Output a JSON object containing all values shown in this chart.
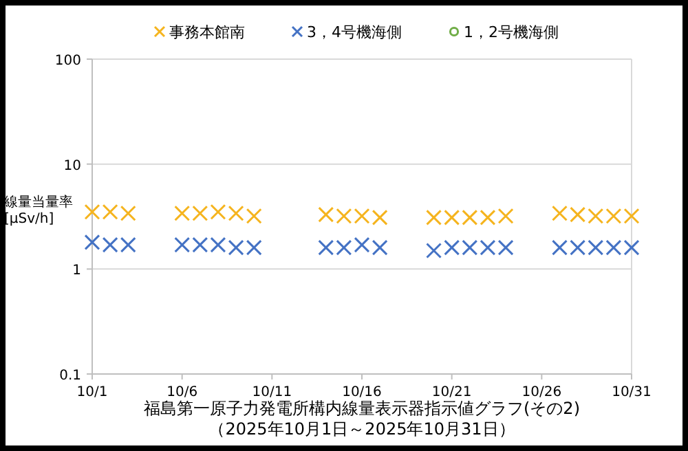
{
  "chart_data": {
    "type": "scatter",
    "title": "福島第一原子力発電所構内線量表示器指示値グラフ(その2)",
    "subtitle": "（2025年10月1日～2025年10月31日）",
    "ylabel": "線量当量率 [μSv/h]",
    "x": [
      "--10-01",
      "--10-02",
      "--10-03",
      "--10-06",
      "--10-07",
      "--10-08",
      "--10-09",
      "--10-10",
      "--10-14",
      "--10-15",
      "--10-16",
      "--10-17",
      "--10-20",
      "--10-21",
      "--10-22",
      "--10-23",
      "--10-24",
      "--10-27",
      "--10-28",
      "--10-29",
      "--10-30",
      "--10-31"
    ],
    "series": [
      {
        "name": "事務本館南",
        "color": "#f5b41e",
        "marker": "cross",
        "values": [
          3.5,
          3.5,
          3.4,
          3.4,
          3.4,
          3.5,
          3.4,
          3.2,
          3.3,
          3.2,
          3.2,
          3.1,
          3.1,
          3.1,
          3.1,
          3.1,
          3.2,
          3.4,
          3.3,
          3.2,
          3.2,
          3.2
        ]
      },
      {
        "name": "3，4号機海側",
        "color": "#4472c4",
        "marker": "cross",
        "values": [
          1.8,
          1.7,
          1.7,
          1.7,
          1.7,
          1.7,
          1.6,
          1.6,
          1.6,
          1.6,
          1.7,
          1.6,
          1.5,
          1.6,
          1.6,
          1.6,
          1.6,
          1.6,
          1.6,
          1.6,
          1.6,
          1.6
        ]
      },
      {
        "name": "1，2号機海側",
        "color": "#70ad47",
        "marker": "circle",
        "values": [
          null,
          null,
          null,
          null,
          null,
          null,
          null,
          null,
          null,
          null,
          null,
          null,
          null,
          null,
          null,
          null,
          null,
          null,
          null,
          null,
          null,
          null
        ]
      }
    ],
    "log": "y",
    "ylim": [
      0.1,
      100
    ],
    "yticks": [
      0.1,
      1,
      10,
      100
    ],
    "xlim": [
      "--10-01",
      "--10-31"
    ],
    "xticks": [
      {
        "value": "--10-01",
        "label": "10/1"
      },
      {
        "value": "--10-06",
        "label": "10/6"
      },
      {
        "value": "--10-11",
        "label": "10/11"
      },
      {
        "value": "--10-16",
        "label": "10/16"
      },
      {
        "value": "--10-21",
        "label": "10/21"
      },
      {
        "value": "--10-26",
        "label": "10/26"
      },
      {
        "value": "--10-31",
        "label": "10/31"
      }
    ],
    "grid": "y",
    "legend": "top"
  }
}
